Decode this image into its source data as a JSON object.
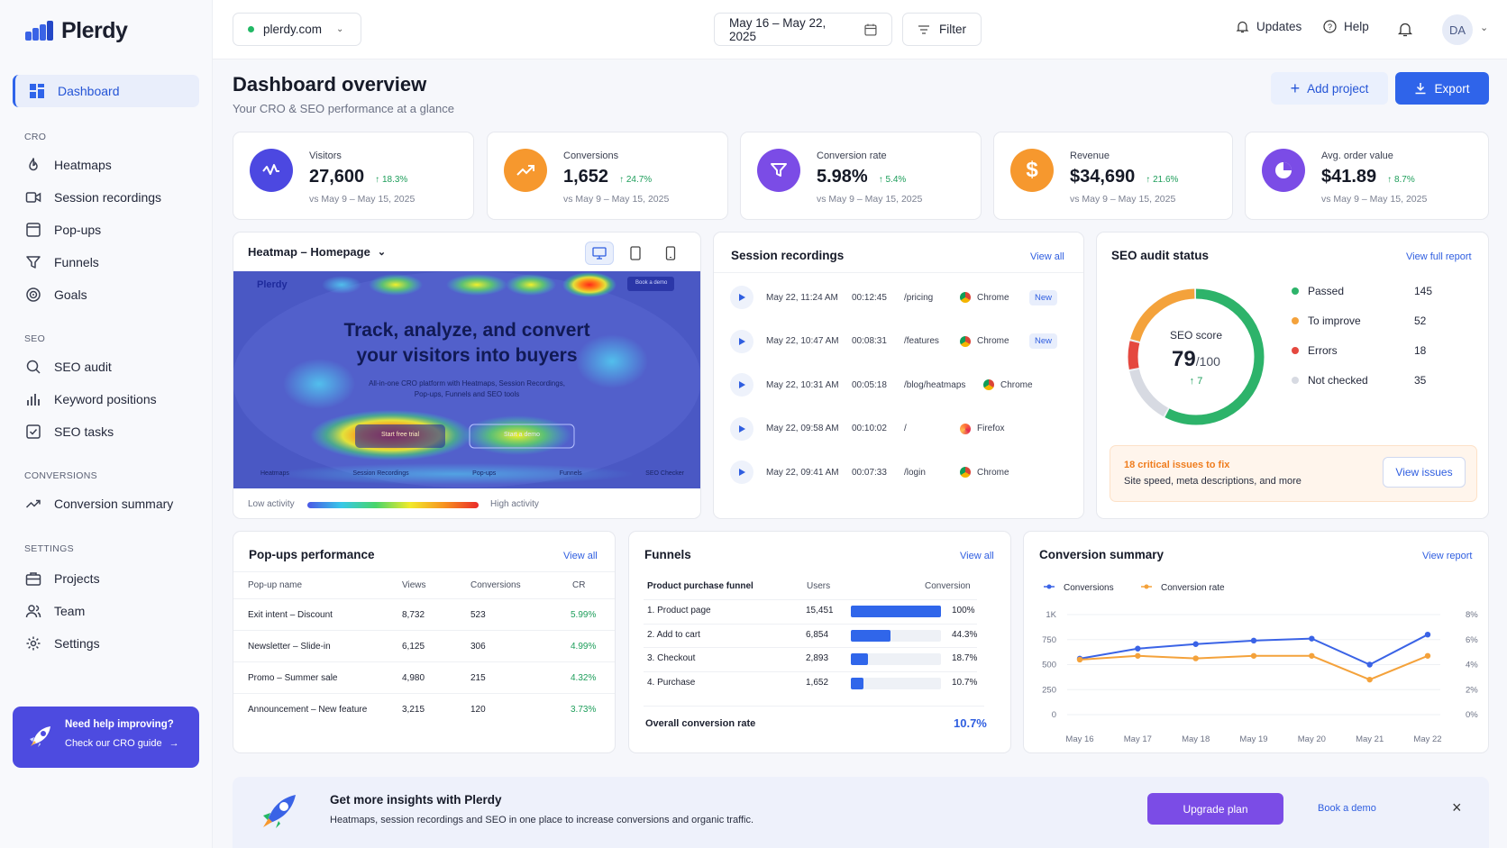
{
  "app": {
    "name": "Plerdy"
  },
  "sidebar": {
    "items": [
      {
        "label": "Dashboard"
      },
      {
        "label": "Heatmaps"
      },
      {
        "label": "Session recordings"
      },
      {
        "label": "Pop-ups"
      },
      {
        "label": "Funnels"
      },
      {
        "label": "Goals"
      },
      {
        "label": "SEO audit"
      },
      {
        "label": "Keyword positions"
      },
      {
        "label": "SEO tasks"
      },
      {
        "label": "Conversion summary"
      },
      {
        "label": "Projects"
      },
      {
        "label": "Team"
      },
      {
        "label": "Settings"
      }
    ],
    "sections": {
      "cro": "CRO",
      "seo": "SEO",
      "conversions": "CONVERSIONS",
      "settings": "SETTINGS"
    },
    "help": {
      "title": "Need help improving?",
      "link": "Check our CRO guide"
    }
  },
  "topbar": {
    "site": "plerdy.com",
    "date_range": "May 16 – May 22, 2025",
    "filter": "Filter",
    "updates": "Updates",
    "help": "Help",
    "avatar": "DA"
  },
  "header": {
    "title": "Dashboard overview",
    "subtitle": "Your CRO & SEO performance at a glance",
    "add_project": "Add project",
    "export": "Export"
  },
  "kpis": [
    {
      "label": "Visitors",
      "value": "27,600",
      "delta": "18.3%",
      "compare": "vs May 9 – May 15, 2025"
    },
    {
      "label": "Conversions",
      "value": "1,652",
      "delta": "24.7%",
      "compare": "vs May 9 – May 15, 2025"
    },
    {
      "label": "Conversion rate",
      "value": "5.98%",
      "delta": "5.4%",
      "compare": "vs May 9 – May 15, 2025"
    },
    {
      "label": "Revenue",
      "value": "$34,690",
      "delta": "21.6%",
      "compare": "vs May 9 – May 15, 2025"
    },
    {
      "label": "Avg. order value",
      "value": "$41.89",
      "delta": "8.7%",
      "compare": "vs May 9 – May 15, 2025"
    }
  ],
  "heatmap": {
    "title": "Heatmap – Homepage",
    "preview": {
      "brand": "Plerdy",
      "headline1": "Track, analyze, and convert",
      "headline2": "your visitors into buyers",
      "sub1": "All-in-one CRO platform with Heatmaps, Session Recordings,",
      "sub2": "Pop-ups, Funnels and SEO tools",
      "cta1": "Start free trial",
      "cta2": "Start a demo",
      "book": "Book a demo",
      "features": [
        "Heatmaps",
        "Session Recordings",
        "Pop-ups",
        "Funnels",
        "SEO Checker"
      ]
    },
    "low": "Low activity",
    "high": "High activity"
  },
  "recordings": {
    "title": "Session recordings",
    "view_all": "View all",
    "rows": [
      {
        "time": "May 22, 11:24 AM",
        "duration": "00:12:45",
        "page": "/pricing",
        "browser": "Chrome",
        "badge": "New"
      },
      {
        "time": "May 22, 10:47 AM",
        "duration": "00:08:31",
        "page": "/features",
        "browser": "Chrome",
        "badge": "New"
      },
      {
        "time": "May 22, 10:31 AM",
        "duration": "00:05:18",
        "page": "/blog/heatmaps",
        "browser": "Chrome",
        "badge": ""
      },
      {
        "time": "May 22, 09:58 AM",
        "duration": "00:10:02",
        "page": "/",
        "browser": "Firefox",
        "badge": ""
      },
      {
        "time": "May 22, 09:41 AM",
        "duration": "00:07:33",
        "page": "/login",
        "browser": "Chrome",
        "badge": ""
      }
    ]
  },
  "seo": {
    "title": "SEO audit status",
    "view": "View full report",
    "score_label": "SEO score",
    "score": "79",
    "score_max": "/100",
    "score_delta": "7",
    "score_ring": {
      "passed": 145,
      "to_improve": 52,
      "errors": 18,
      "not_checked": 35
    },
    "legend": [
      {
        "label": "Passed",
        "value": "145",
        "color": "#2db36a"
      },
      {
        "label": "To improve",
        "value": "52",
        "color": "#f4a23b"
      },
      {
        "label": "Errors",
        "value": "18",
        "color": "#e5483f"
      },
      {
        "label": "Not checked",
        "value": "35",
        "color": "#d7dae2"
      }
    ],
    "issues_title": "18 critical issues to fix",
    "issues_sub": "Site speed, meta descriptions, and more",
    "issues_btn": "View issues"
  },
  "popups": {
    "title": "Pop-ups performance",
    "view_all": "View all",
    "headers": [
      "Pop-up name",
      "Views",
      "Conversions",
      "CR"
    ],
    "rows": [
      [
        "Exit intent – Discount",
        "8,732",
        "523",
        "5.99%"
      ],
      [
        "Newsletter – Slide-in",
        "6,125",
        "306",
        "4.99%"
      ],
      [
        "Promo – Summer sale",
        "4,980",
        "215",
        "4.32%"
      ],
      [
        "Announcement – New feature",
        "3,215",
        "120",
        "3.73%"
      ]
    ]
  },
  "funnels": {
    "title": "Funnels",
    "view_all": "View all",
    "headers": [
      "Product purchase funnel",
      "Users",
      "Conversion"
    ],
    "rows": [
      {
        "step": "1. Product page",
        "users": "15,451",
        "pct": "100%",
        "fill": 1.0
      },
      {
        "step": "2. Add to cart",
        "users": "6,854",
        "pct": "44.3%",
        "fill": 0.443
      },
      {
        "step": "3. Checkout",
        "users": "2,893",
        "pct": "18.7%",
        "fill": 0.187
      },
      {
        "step": "4. Purchase",
        "users": "1,652",
        "pct": "10.7%",
        "fill": 0.107
      }
    ],
    "overall_label": "Overall conversion rate",
    "overall": "10.7%"
  },
  "conversion": {
    "title": "Conversion summary",
    "view": "View report"
  },
  "chart_data": {
    "type": "line",
    "x": [
      "May 16",
      "May 17",
      "May 18",
      "May 19",
      "May 20",
      "May 21",
      "May 22"
    ],
    "series": [
      {
        "name": "Conversions",
        "values": [
          560,
          660,
          705,
          740,
          760,
          500,
          800
        ],
        "axis": "left",
        "color": "#3a63e6"
      },
      {
        "name": "Conversion rate",
        "values": [
          4.4,
          4.7,
          4.5,
          4.7,
          4.7,
          2.8,
          4.7
        ],
        "axis": "right",
        "color": "#f4a23b"
      }
    ],
    "yticks_left": [
      "1K",
      "750",
      "500",
      "250",
      "0"
    ],
    "yticks_right": [
      "8%",
      "6%",
      "4%",
      "2%",
      "0%"
    ],
    "ylim_left": [
      0,
      1000
    ],
    "ylim_right": [
      0,
      8
    ],
    "legend": "top-left",
    "grid": true
  },
  "banner": {
    "title": "Get more insights with Plerdy",
    "sub": "Heatmaps, session recordings and SEO in one place to increase conversions and organic traffic.",
    "upgrade": "Upgrade plan",
    "demo": "Book a demo"
  }
}
